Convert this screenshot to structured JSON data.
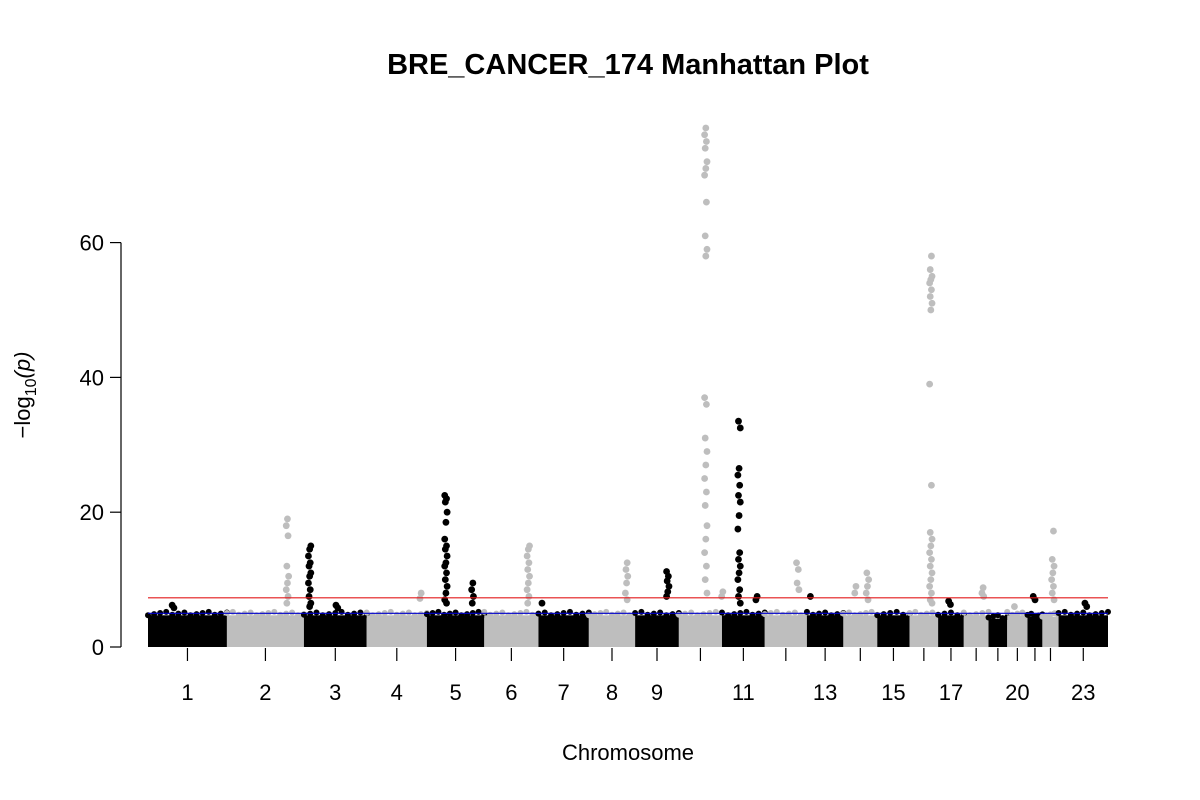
{
  "chart_data": {
    "type": "scatter",
    "title": "BRE_CANCER_174 Manhattan Plot",
    "xlabel": "Chromosome",
    "ylabel_prefix": "−log",
    "ylabel_sub": "10",
    "ylabel_suffix": "(p)",
    "ylim": [
      0,
      77
    ],
    "y_ticks": [
      0,
      20,
      40,
      60
    ],
    "alternating_colors": [
      "#000000",
      "#BEBEBE"
    ],
    "suggestive_line": {
      "value": 5,
      "color": "#0000CD"
    },
    "genomewide_line": {
      "value": 7.3,
      "color": "#E31A1C"
    },
    "chromosomes": [
      {
        "chr": "1",
        "label": "1",
        "start": 0,
        "end": 249,
        "base": 5.0
      },
      {
        "chr": "2",
        "label": "2",
        "start": 249,
        "end": 492,
        "base": 5.0
      },
      {
        "chr": "3",
        "label": "3",
        "start": 492,
        "end": 690,
        "base": 5.0
      },
      {
        "chr": "4",
        "label": "4",
        "start": 690,
        "end": 880,
        "base": 5.0
      },
      {
        "chr": "5",
        "label": "5",
        "start": 880,
        "end": 1061,
        "base": 5.0
      },
      {
        "chr": "6",
        "label": "6",
        "start": 1061,
        "end": 1232,
        "base": 5.0
      },
      {
        "chr": "7",
        "label": "7",
        "start": 1232,
        "end": 1391,
        "base": 5.0
      },
      {
        "chr": "8",
        "label": "8",
        "start": 1391,
        "end": 1537,
        "base": 5.0
      },
      {
        "chr": "9",
        "label": "9",
        "start": 1537,
        "end": 1675,
        "base": 5.0
      },
      {
        "chr": "10",
        "label": "",
        "start": 1675,
        "end": 1811,
        "base": 5.0
      },
      {
        "chr": "11",
        "label": "11",
        "start": 1811,
        "end": 1946,
        "base": 5.0
      },
      {
        "chr": "12",
        "label": "",
        "start": 1946,
        "end": 2079,
        "base": 5.0
      },
      {
        "chr": "13",
        "label": "13",
        "start": 2079,
        "end": 2194,
        "base": 5.0
      },
      {
        "chr": "14",
        "label": "",
        "start": 2194,
        "end": 2301,
        "base": 5.0
      },
      {
        "chr": "15",
        "label": "15",
        "start": 2301,
        "end": 2403,
        "base": 5.0
      },
      {
        "chr": "16",
        "label": "",
        "start": 2403,
        "end": 2493,
        "base": 5.0
      },
      {
        "chr": "17",
        "label": "17",
        "start": 2493,
        "end": 2574,
        "base": 5.0
      },
      {
        "chr": "18",
        "label": "",
        "start": 2574,
        "end": 2652,
        "base": 5.0
      },
      {
        "chr": "19",
        "label": "",
        "start": 2652,
        "end": 2711,
        "base": 4.5
      },
      {
        "chr": "20",
        "label": "20",
        "start": 2711,
        "end": 2775,
        "base": 5.0
      },
      {
        "chr": "21",
        "label": "",
        "start": 2775,
        "end": 2822,
        "base": 4.8
      },
      {
        "chr": "22",
        "label": "",
        "start": 2822,
        "end": 2873,
        "base": 4.8
      },
      {
        "chr": "23",
        "label": "23",
        "start": 2873,
        "end": 3029,
        "base": 5.0
      }
    ],
    "peaks": [
      {
        "chr": "1",
        "pos": 80,
        "values": [
          6.2,
          5.8
        ]
      },
      {
        "chr": "2",
        "pos": 440,
        "values": [
          19,
          18,
          16.5,
          12,
          10.5,
          9.5,
          8.5,
          7.5,
          6.5
        ]
      },
      {
        "chr": "3",
        "pos": 510,
        "values": [
          15,
          14.5,
          13.5,
          12.5,
          12,
          11,
          10.5,
          9.5,
          8.5,
          7.5,
          6.5,
          6
        ]
      },
      {
        "chr": "3",
        "pos": 595,
        "values": [
          6.2,
          5.8
        ]
      },
      {
        "chr": "4",
        "pos": 860,
        "values": [
          8.0,
          7.2
        ]
      },
      {
        "chr": "5",
        "pos": 940,
        "values": [
          22.5,
          22,
          21.5,
          20,
          18.5,
          16,
          15,
          14.5,
          13.5,
          12.5,
          12,
          11,
          10,
          9,
          8,
          7,
          6.5
        ]
      },
      {
        "chr": "5",
        "pos": 1025,
        "values": [
          9.5,
          8.5,
          7.5,
          6.5
        ]
      },
      {
        "chr": "6",
        "pos": 1200,
        "values": [
          15,
          14.5,
          13.5,
          12.5,
          11.5,
          10.5,
          9.5,
          8.5,
          7.5,
          6.5
        ]
      },
      {
        "chr": "7",
        "pos": 1245,
        "values": [
          6.5
        ]
      },
      {
        "chr": "8",
        "pos": 1510,
        "values": [
          12.5,
          11.5,
          10.5,
          9.5,
          8,
          7
        ]
      },
      {
        "chr": "9",
        "pos": 1640,
        "values": [
          11.2,
          10.5,
          9.8,
          9,
          8.2,
          7.5
        ]
      },
      {
        "chr": "10",
        "pos": 1760,
        "values": [
          77,
          76,
          75,
          74,
          72,
          71,
          70,
          66,
          61,
          59,
          58,
          37,
          36,
          31,
          29,
          27,
          25,
          23,
          21,
          18,
          16,
          14,
          12,
          10,
          8
        ]
      },
      {
        "chr": "10",
        "pos": 1810,
        "values": [
          8.2,
          7.5
        ]
      },
      {
        "chr": "11",
        "pos": 1865,
        "values": [
          33.5,
          32.5,
          26.5,
          25.5,
          24,
          22.5,
          21.5,
          19.5,
          17.5,
          14,
          13,
          12,
          11,
          10,
          8.5,
          7.5,
          6.5
        ]
      },
      {
        "chr": "11",
        "pos": 1920,
        "values": [
          7.5,
          7.0
        ]
      },
      {
        "chr": "12",
        "pos": 2050,
        "values": [
          12.5,
          11.5,
          9.5,
          8.5
        ]
      },
      {
        "chr": "13",
        "pos": 2090,
        "values": [
          7.5
        ]
      },
      {
        "chr": "14",
        "pos": 2230,
        "values": [
          9,
          8
        ]
      },
      {
        "chr": "14",
        "pos": 2270,
        "values": [
          11,
          10,
          9,
          8,
          7
        ]
      },
      {
        "chr": "16",
        "pos": 2470,
        "values": [
          58,
          56,
          55,
          54.5,
          54,
          53,
          52,
          51,
          50,
          39,
          24,
          17,
          16,
          15,
          14,
          13,
          12,
          11,
          10,
          9,
          8,
          7,
          6.5
        ]
      },
      {
        "chr": "17",
        "pos": 2530,
        "values": [
          6.8,
          6.3
        ]
      },
      {
        "chr": "18",
        "pos": 2635,
        "values": [
          8.8,
          8,
          7.5
        ]
      },
      {
        "chr": "20",
        "pos": 2730,
        "values": [
          6.0
        ]
      },
      {
        "chr": "21",
        "pos": 2795,
        "values": [
          7.5,
          7.0
        ]
      },
      {
        "chr": "22",
        "pos": 2855,
        "values": [
          17.2,
          13,
          12,
          11,
          10,
          9,
          8,
          7
        ]
      },
      {
        "chr": "23",
        "pos": 2960,
        "values": [
          6.5,
          6.0
        ]
      }
    ]
  }
}
